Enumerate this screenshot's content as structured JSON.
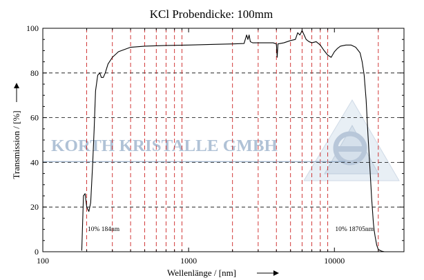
{
  "chart_data": {
    "type": "line",
    "title": "KCl Probendicke: 100mm",
    "xlabel": "Wellenlänge / [nm]",
    "ylabel": "Transmission / [%]",
    "xscale": "log",
    "xlim": [
      100,
      30000
    ],
    "ylim": [
      0,
      100
    ],
    "x_ticks": [
      100,
      1000,
      10000
    ],
    "x_tick_labels": [
      "100",
      "1000",
      "10000"
    ],
    "y_ticks": [
      0,
      20,
      40,
      60,
      80,
      100
    ],
    "y_tick_labels": [
      "0",
      "20",
      "40",
      "60",
      "80",
      "100"
    ],
    "grid": "dashed horizontal lines at 20, 40, 60, 80; dashed red vertical lines at 200-900, 2000-9000, 20000 nm",
    "vertical_markers_nm": [
      200,
      300,
      400,
      500,
      600,
      700,
      800,
      900,
      2000,
      3000,
      4000,
      5000,
      6000,
      7000,
      8000,
      9000,
      20000
    ],
    "annotations": [
      {
        "text": "10% 184nm",
        "x": 184,
        "y": 10
      },
      {
        "text": "10% 18705nm",
        "x": 18705,
        "y": 10
      }
    ],
    "watermark_text": "KORTH KRISTALLE GMBH",
    "series": [
      {
        "points": [
          [
            185,
            0.5
          ],
          [
            190,
            25
          ],
          [
            195,
            26
          ],
          [
            200,
            20
          ],
          [
            207,
            18
          ],
          [
            213,
            22
          ],
          [
            220,
            40
          ],
          [
            225,
            55
          ],
          [
            230,
            72
          ],
          [
            238,
            79
          ],
          [
            246,
            80
          ],
          [
            252,
            78
          ],
          [
            260,
            78
          ],
          [
            268,
            80
          ],
          [
            280,
            84
          ],
          [
            300,
            87
          ],
          [
            330,
            89.5
          ],
          [
            400,
            91.5
          ],
          [
            500,
            92
          ],
          [
            700,
            92.3
          ],
          [
            1000,
            92.5
          ],
          [
            1500,
            92.8
          ],
          [
            2000,
            93
          ],
          [
            2400,
            93.2
          ],
          [
            2500,
            97
          ],
          [
            2550,
            95
          ],
          [
            2600,
            97
          ],
          [
            2650,
            94
          ],
          [
            2750,
            93.5
          ],
          [
            3000,
            93.5
          ],
          [
            3500,
            93.5
          ],
          [
            3800,
            93.5
          ],
          [
            4000,
            93
          ],
          [
            4050,
            87
          ],
          [
            4100,
            93
          ],
          [
            4500,
            93.5
          ],
          [
            5000,
            94.5
          ],
          [
            5400,
            95
          ],
          [
            5600,
            98
          ],
          [
            5800,
            97
          ],
          [
            6000,
            99
          ],
          [
            6200,
            97
          ],
          [
            6400,
            95
          ],
          [
            6700,
            94
          ],
          [
            7000,
            93.5
          ],
          [
            7500,
            94
          ],
          [
            8000,
            92.5
          ],
          [
            8500,
            90
          ],
          [
            9000,
            88
          ],
          [
            9500,
            87
          ],
          [
            10000,
            89.5
          ],
          [
            10500,
            91
          ],
          [
            11000,
            92
          ],
          [
            12000,
            92.5
          ],
          [
            13000,
            92.5
          ],
          [
            14000,
            91.5
          ],
          [
            15000,
            89
          ],
          [
            15500,
            85
          ],
          [
            16000,
            79
          ],
          [
            16500,
            68
          ],
          [
            17000,
            52
          ],
          [
            17500,
            38
          ],
          [
            18000,
            24
          ],
          [
            18500,
            13
          ],
          [
            18705,
            10
          ],
          [
            19000,
            7
          ],
          [
            19500,
            3
          ],
          [
            20000,
            1
          ],
          [
            21000,
            0.3
          ],
          [
            22000,
            0
          ]
        ]
      }
    ]
  }
}
